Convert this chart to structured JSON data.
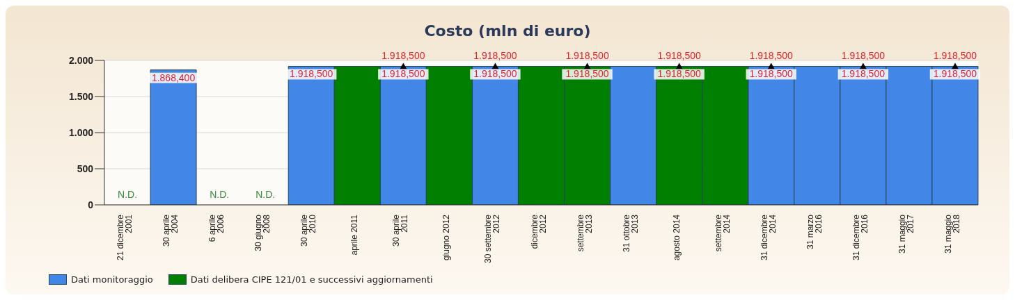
{
  "chart_data": {
    "type": "bar",
    "title": "Costo (mln di euro)",
    "categories": [
      "21 dicembre 2001",
      "30 aprile 2004",
      "6 aprile 2006",
      "30 giugno 2008",
      "30 aprile 2010",
      "aprile 2011",
      "30 aprile 2011",
      "giugno 2012",
      "30 settembre 2012",
      "dicembre 2012",
      "settembre 2013",
      "31 ottobre 2013",
      "agosto 2014",
      "settembre 2014",
      "31 dicembre 2014",
      "31 marzo 2016",
      "31 dicembre 2016",
      "31 maggio 2017",
      "31 maggio 2018"
    ],
    "series": [
      {
        "name": "Dati monitoraggio",
        "color": "#4286e8",
        "values": [
          null,
          1868.4,
          null,
          null,
          1918.5,
          null,
          1918.5,
          null,
          1918.5,
          null,
          null,
          1918.5,
          null,
          null,
          1918.5,
          1918.5,
          1918.5,
          1918.5,
          1918.5
        ],
        "value_labels": [
          "N.D.",
          "1.868,400",
          "N.D.",
          "N.D.",
          "1.918,500",
          null,
          "1.918,500",
          null,
          "1.918,500",
          null,
          null,
          null,
          null,
          null,
          "1.918,500",
          null,
          "1.918,500",
          null,
          "1.918,500"
        ]
      },
      {
        "name": "Dati delibera CIPE 121/01 e successivi aggiornamenti",
        "color": "#007f00",
        "values": [
          null,
          null,
          null,
          null,
          null,
          1918.5,
          null,
          1918.5,
          null,
          1918.5,
          1918.5,
          null,
          1918.5,
          1918.5,
          null,
          null,
          null,
          null,
          null
        ],
        "value_labels": [
          null,
          null,
          null,
          null,
          null,
          null,
          null,
          null,
          null,
          null,
          "1.918,500",
          null,
          "1.918,500",
          null,
          null,
          null,
          null,
          null,
          null
        ]
      },
      {
        "type": "scatter",
        "color": "#000000",
        "marker": "triangle",
        "values": [
          null,
          null,
          null,
          null,
          null,
          null,
          1918.5,
          null,
          1918.5,
          null,
          1918.5,
          null,
          1918.5,
          null,
          1918.5,
          null,
          1918.5,
          null,
          1918.5
        ],
        "value_labels": [
          null,
          null,
          null,
          null,
          null,
          null,
          "1.918,500",
          null,
          "1.918,500",
          null,
          "1.918,500",
          null,
          "1.918,500",
          null,
          "1.918,500",
          null,
          "1.918,500",
          null,
          "1.918,500"
        ]
      }
    ],
    "stacked": true,
    "ylim": [
      0,
      2000
    ],
    "yticks": [
      0,
      500,
      {
        "value": 1000,
        "label": "1.000"
      },
      {
        "value": 1500,
        "label": "1.500"
      },
      {
        "value": 2000,
        "label": "2.000"
      }
    ],
    "grid": "y",
    "legend": "bottom left"
  }
}
